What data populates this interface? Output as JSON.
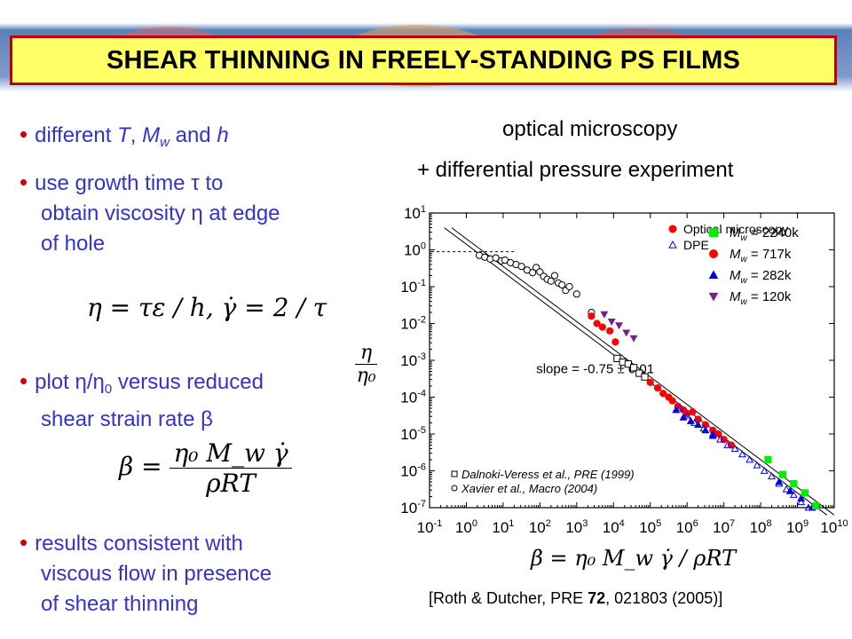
{
  "title": "SHEAR THINNING IN FREELY-STANDING PS FILMS",
  "left": {
    "b1": {
      "text": "different ",
      "T": "T",
      "sep": ", ",
      "M": "M",
      "Msub": "w",
      "and": " and ",
      "h": "h"
    },
    "b2": {
      "line1a": "use growth time ",
      "tau": "τ",
      "line1b": " to",
      "line2a": "obtain viscosity ",
      "eta": "η",
      "line2b": " at edge",
      "line3": "of hole"
    },
    "eq1": {
      "lhs": "η = τε / h,",
      "gdot": "γ̇",
      "rhs": " = 2 / τ"
    },
    "b3": {
      "line1a": "plot ",
      "eta": "η",
      "slash": "/",
      "eta0": "η",
      "sub0": "0",
      "line1b": " versus reduced",
      "line2a": "shear strain rate ",
      "beta": "β"
    },
    "eq2": {
      "lhs": "β = ",
      "num": "η₀ M_w γ̇",
      "den": "ρRT"
    },
    "b4": {
      "line1": "results consistent with",
      "line2": "viscous flow in presence",
      "line3": "of shear thinning"
    }
  },
  "right": {
    "head1": "optical microscopy",
    "head2": "+ differential pressure experiment",
    "citation": {
      "pre": "[Roth & Dutcher, PRE ",
      "vol": "72",
      "post": ", 021803 (2005)]"
    }
  },
  "chart_data": {
    "type": "scatter",
    "ylabel": {
      "num": "η",
      "den": "η₀"
    },
    "xlabel": "β = η₀ M_w γ̇ / ρRT",
    "xscale": "log",
    "yscale": "log",
    "xlim_exp": [
      -1,
      10
    ],
    "ylim_exp": [
      -7,
      1
    ],
    "x_tick_labels": [
      "10-1",
      "100",
      "101",
      "102",
      "103",
      "104",
      "105",
      "106",
      "107",
      "108",
      "109",
      "1010"
    ],
    "y_tick_labels": [
      "101",
      "100",
      "10-1",
      "10-2",
      "10-3",
      "10-4",
      "10-5",
      "10-6",
      "10-7"
    ],
    "annotation": "slope = -0.75 ± 0.01",
    "legend_top": {
      "position": "top-right",
      "method_entries": [
        {
          "marker": "circle",
          "label": "Optical microscopy",
          "color": "#ff0000"
        },
        {
          "marker": "triangle-up-open",
          "label": "DPE",
          "color": "#0000ff"
        }
      ],
      "mw_entries": [
        {
          "marker": "square",
          "color": "#00ee00",
          "M": "M",
          "sub": "w",
          "text": " = 2240k"
        },
        {
          "marker": "circle",
          "color": "#ff0000",
          "M": "M",
          "sub": "w",
          "text": " = 717k"
        },
        {
          "marker": "triangle-up",
          "color": "#0000dd",
          "M": "M",
          "sub": "w",
          "text": " = 282k"
        },
        {
          "marker": "triangle-down",
          "color": "#7a1f8a",
          "M": "M",
          "sub": "w",
          "text": " = 120k"
        }
      ]
    },
    "legend_bottom": {
      "position": "bottom-left",
      "entries": [
        {
          "marker": "square-open",
          "label": "Dalnoki-Veress et al., PRE (1999)"
        },
        {
          "marker": "circle-open",
          "label": "Xavier et al., Macro (2004)"
        }
      ]
    },
    "fit_line": {
      "slope": -0.75,
      "plateau_y_exp": -0.05
    },
    "series": [
      {
        "name": "Xavier et al., Macro (2004)",
        "marker": "circle-open",
        "color": "#000000",
        "points": [
          [
            0.35,
            -0.15
          ],
          [
            0.5,
            -0.2
          ],
          [
            0.65,
            -0.25
          ],
          [
            0.8,
            -0.22
          ],
          [
            0.95,
            -0.3
          ],
          [
            1.05,
            -0.28
          ],
          [
            1.2,
            -0.35
          ],
          [
            1.35,
            -0.4
          ],
          [
            1.5,
            -0.45
          ],
          [
            1.65,
            -0.55
          ],
          [
            1.8,
            -0.62
          ],
          [
            1.9,
            -0.48
          ],
          [
            2.0,
            -0.6
          ],
          [
            2.1,
            -0.72
          ],
          [
            2.2,
            -0.8
          ],
          [
            2.3,
            -0.85
          ],
          [
            2.4,
            -0.7
          ],
          [
            2.5,
            -0.9
          ],
          [
            2.6,
            -0.95
          ],
          [
            2.7,
            -1.1
          ],
          [
            2.8,
            -1.0
          ],
          [
            3.0,
            -1.2
          ],
          [
            3.4,
            -1.7
          ]
        ]
      },
      {
        "name": "Dalnoki-Veress et al., PRE (1999)",
        "marker": "square-open",
        "color": "#000000",
        "points": [
          [
            4.1,
            -2.95
          ],
          [
            4.25,
            -3.05
          ],
          [
            4.4,
            -3.1
          ],
          [
            4.55,
            -3.2
          ],
          [
            4.7,
            -3.35
          ],
          [
            4.85,
            -3.45
          ]
        ]
      },
      {
        "name": "M_w = 120k",
        "marker": "triangle-down",
        "color": "#7a1f8a",
        "points": [
          [
            3.75,
            -1.75
          ],
          [
            3.95,
            -1.95
          ],
          [
            4.15,
            -2.05
          ],
          [
            4.35,
            -2.25
          ],
          [
            4.55,
            -2.4
          ]
        ]
      },
      {
        "name": "M_w = 717k",
        "marker": "circle",
        "color": "#ff0000",
        "points": [
          [
            3.4,
            -1.8
          ],
          [
            3.55,
            -2.0
          ],
          [
            3.7,
            -2.1
          ],
          [
            3.9,
            -2.2
          ],
          [
            4.05,
            -2.5
          ],
          [
            5.0,
            -3.6
          ],
          [
            5.2,
            -3.75
          ],
          [
            5.35,
            -3.9
          ],
          [
            5.5,
            -4.0
          ],
          [
            5.6,
            -4.1
          ],
          [
            5.75,
            -4.25
          ],
          [
            5.9,
            -4.35
          ],
          [
            6.0,
            -4.45
          ],
          [
            6.15,
            -4.4
          ],
          [
            6.3,
            -4.6
          ],
          [
            6.5,
            -4.75
          ],
          [
            6.7,
            -4.9
          ],
          [
            6.85,
            -5.0
          ],
          [
            7.0,
            -5.15
          ],
          [
            7.2,
            -5.3
          ]
        ]
      },
      {
        "name": "M_w = 282k",
        "marker": "triangle-up",
        "color": "#0000dd",
        "points": [
          [
            5.7,
            -4.35
          ],
          [
            5.9,
            -4.55
          ],
          [
            6.1,
            -4.65
          ],
          [
            6.3,
            -4.75
          ],
          [
            6.5,
            -4.9
          ],
          [
            6.7,
            -5.05
          ],
          [
            8.5,
            -6.3
          ],
          [
            8.8,
            -6.55
          ],
          [
            9.1,
            -6.75
          ],
          [
            9.4,
            -7.0
          ]
        ]
      },
      {
        "name": "DPE",
        "marker": "triangle-up-open",
        "color": "#0000ff",
        "points": [
          [
            5.8,
            -4.3
          ],
          [
            6.0,
            -4.5
          ],
          [
            6.2,
            -4.7
          ],
          [
            6.45,
            -4.85
          ],
          [
            6.7,
            -5.0
          ],
          [
            6.9,
            -5.15
          ],
          [
            7.1,
            -5.3
          ],
          [
            7.3,
            -5.4
          ],
          [
            7.5,
            -5.55
          ],
          [
            7.7,
            -5.7
          ],
          [
            7.9,
            -5.85
          ],
          [
            8.1,
            -6.0
          ],
          [
            8.3,
            -6.15
          ],
          [
            8.5,
            -6.35
          ],
          [
            8.7,
            -6.5
          ],
          [
            8.9,
            -6.65
          ],
          [
            9.1,
            -6.85
          ],
          [
            9.3,
            -7.0
          ]
        ]
      },
      {
        "name": "M_w = 2240k",
        "marker": "square",
        "color": "#00ee00",
        "points": [
          [
            8.2,
            -5.7
          ],
          [
            8.6,
            -6.1
          ],
          [
            8.9,
            -6.35
          ],
          [
            9.2,
            -6.6
          ],
          [
            9.5,
            -6.95
          ]
        ]
      }
    ]
  }
}
